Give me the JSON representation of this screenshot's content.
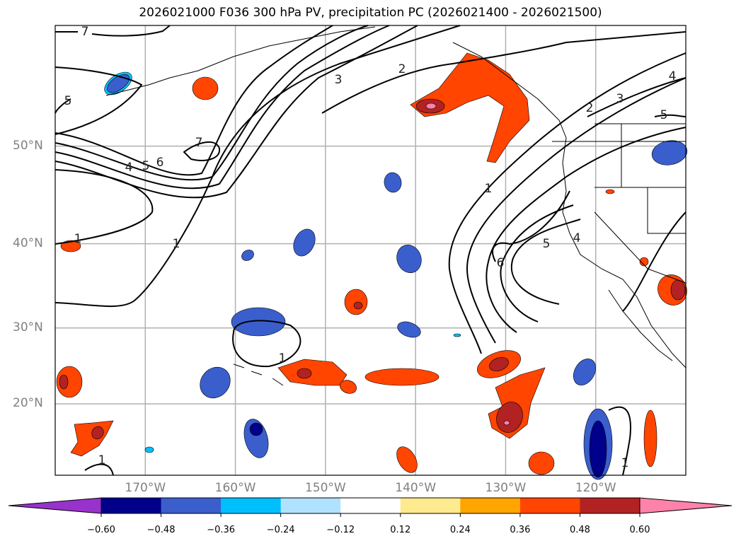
{
  "title": "2026021000 F036 300 hPa PV, precipitation PC (2026021400 - 2026021500)",
  "map": {
    "lat_labels": [
      "50°N",
      "40°N",
      "30°N",
      "20°N"
    ],
    "lon_labels": [
      "170°W",
      "160°W",
      "150°W",
      "140°W",
      "130°W",
      "120°W"
    ],
    "lat_range": [
      10,
      60
    ],
    "lon_range": [
      -180,
      -110
    ],
    "contour_labels": [
      "7",
      "5",
      "4",
      "5",
      "6",
      "7",
      "3",
      "2",
      "1",
      "1",
      "1",
      "2",
      "3",
      "4",
      "5",
      "1",
      "5",
      "6",
      "4",
      "1",
      "1"
    ],
    "grid_color": "#b0b0b0"
  },
  "colorbar": {
    "levels": [
      "−0.60",
      "−0.48",
      "−0.36",
      "−0.24",
      "−0.12",
      "0.12",
      "0.24",
      "0.36",
      "0.48",
      "0.60"
    ],
    "colors": [
      "#9932cc",
      "#00008b",
      "#3a5fcd",
      "#00bfff",
      "#b0e2ff",
      "#ffffff",
      "#ffeb8f",
      "#ffa500",
      "#ff4500",
      "#b22222",
      "#ff82ab"
    ]
  },
  "chart_data": {
    "type": "heatmap",
    "title": "2026021000 F036 300 hPa PV, precipitation PC (2026021400 - 2026021500)",
    "xlabel": "",
    "ylabel": "",
    "xlim": [
      -180,
      -110
    ],
    "ylim": [
      10,
      60
    ],
    "x_ticks": [
      "170°W",
      "160°W",
      "150°W",
      "140°W",
      "130°W",
      "120°W"
    ],
    "y_ticks": [
      "50°N",
      "40°N",
      "30°N",
      "20°N"
    ],
    "colorbar_levels": [
      -0.6,
      -0.48,
      -0.36,
      -0.24,
      -0.12,
      0.12,
      0.24,
      0.36,
      0.48,
      0.6
    ],
    "contour_field": "300 hPa PV",
    "contour_levels": [
      1,
      2,
      3,
      4,
      5,
      6,
      7
    ],
    "grid": true
  }
}
